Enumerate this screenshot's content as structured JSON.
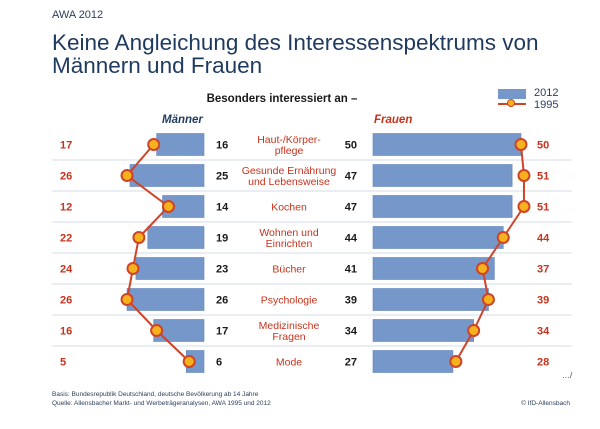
{
  "header_label": "AWA 2012",
  "title": "Keine Angleichung des Interessenspektrums von Männern und Frauen",
  "colors": {
    "bar": "#7597ca",
    "bar_stroke": "#5f82b8",
    "line": "#cf4428",
    "marker_fill": "#f6b21d",
    "value_2012": "#1a1a1a",
    "value_1995": "#c8321c",
    "group_maenner": "#1f3a5f",
    "group_frauen": "#c8321c",
    "category_text": "#c8321c",
    "row_divider": "#d5dbe6"
  },
  "chart_data": {
    "type": "bar",
    "title": "Besonders interessiert an –",
    "groups": [
      "Männer",
      "Frauen"
    ],
    "categories": [
      [
        "Haut-/Körper-",
        "pflege"
      ],
      [
        "Gesunde Ernährung",
        "und Lebensweise"
      ],
      [
        "Kochen"
      ],
      [
        "Wohnen und",
        "Einrichten"
      ],
      [
        "Bücher"
      ],
      [
        "Psychologie"
      ],
      [
        "Medizinische",
        "Fragen"
      ],
      [
        "Mode"
      ]
    ],
    "series": [
      {
        "name": "2012",
        "kind": "bar",
        "maenner": [
          16,
          25,
          14,
          19,
          23,
          26,
          17,
          6
        ],
        "frauen": [
          50,
          47,
          47,
          44,
          41,
          39,
          34,
          27
        ]
      },
      {
        "name": "1995",
        "kind": "line",
        "maenner": [
          17,
          26,
          12,
          22,
          24,
          26,
          16,
          5
        ],
        "frauen": [
          50,
          51,
          51,
          44,
          37,
          39,
          34,
          28
        ]
      }
    ],
    "value_scale_max": 52,
    "legend": [
      {
        "label": "2012",
        "style": "bar"
      },
      {
        "label": "1995",
        "style": "line"
      }
    ],
    "legend_position": "top-right",
    "xlabel": "",
    "ylabel": ""
  },
  "source_lines": [
    "Basis: Bundesrepublik Deutschland, deutsche Bevölkerung ab 14 Jahre",
    "Quelle: Allensbacher Markt- und Werbeträgeranalysen, AWA 1995 und 2012"
  ],
  "copyright": "© IfD-Allensbach",
  "ellipsis": "…/"
}
